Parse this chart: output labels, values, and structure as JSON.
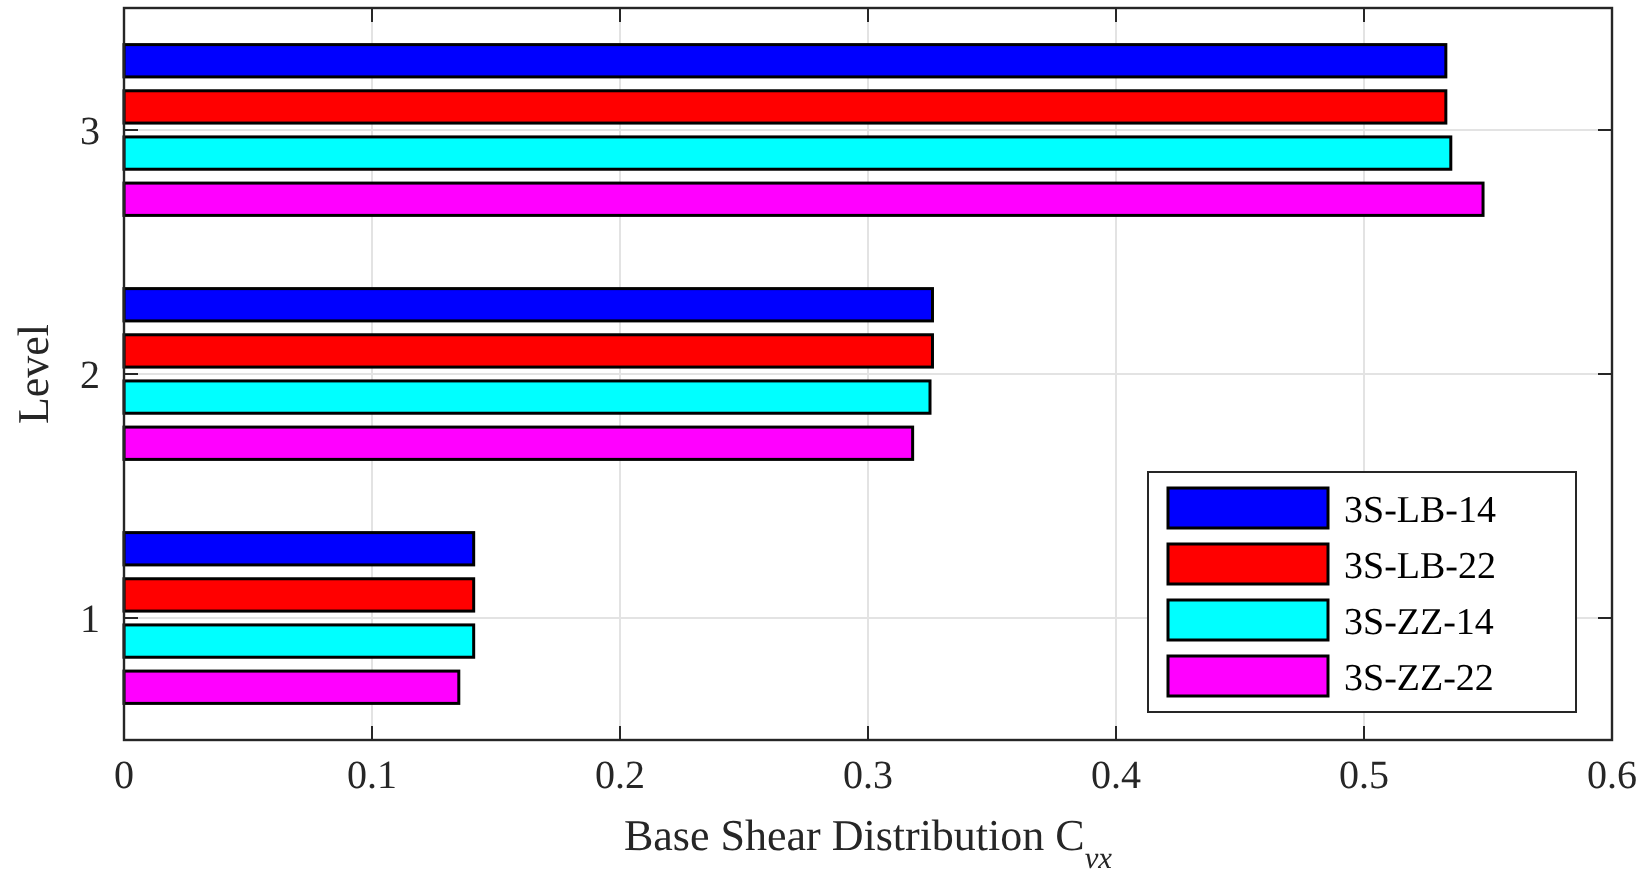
{
  "chart_data": {
    "type": "bar",
    "orientation": "horizontal",
    "xlabel": "Base Shear Distribution C$_{vx}$",
    "ylabel": "Level",
    "categories": [
      "3",
      "2",
      "1"
    ],
    "series": [
      {
        "name": "3S-LB-14",
        "color": "#0000ff",
        "values": [
          0.533,
          0.326,
          0.141
        ]
      },
      {
        "name": "3S-LB-22",
        "color": "#ff0000",
        "values": [
          0.533,
          0.326,
          0.141
        ]
      },
      {
        "name": "3S-ZZ-14",
        "color": "#00ffff",
        "values": [
          0.535,
          0.325,
          0.141
        ]
      },
      {
        "name": "3S-ZZ-22",
        "color": "#ff00ff",
        "values": [
          0.548,
          0.318,
          0.135
        ]
      }
    ],
    "xlim": [
      0,
      0.6
    ],
    "xticks": [
      0,
      0.1,
      0.2,
      0.3,
      0.4,
      0.5,
      0.6
    ],
    "grid": true,
    "legend": "bottom right"
  }
}
